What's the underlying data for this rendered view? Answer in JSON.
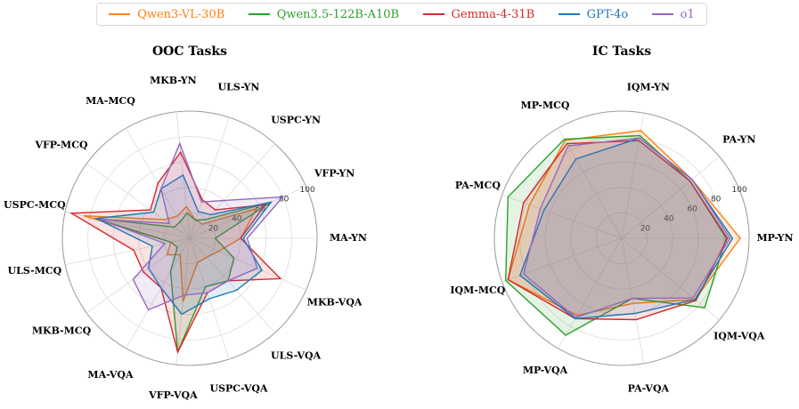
{
  "legend": [
    {
      "name": "Qwen3-VL-30B",
      "color": "#ff7f0e"
    },
    {
      "name": "Qwen3.5-122B-A10B",
      "color": "#2ca02c"
    },
    {
      "name": "Gemma-4-31B",
      "color": "#d62728"
    },
    {
      "name": "GPT-4o",
      "color": "#1f77b4"
    },
    {
      "name": "o1",
      "color": "#9467bd"
    }
  ],
  "chart_data": [
    {
      "type": "radar",
      "title": "OOC Tasks",
      "categories": [
        "MA-YN",
        "VFP-YN",
        "USPC-YN",
        "ULS-YN",
        "MKB-YN",
        "MA-MCQ",
        "VFP-MCQ",
        "USPC-MCQ",
        "ULS-MCQ",
        "MKB-MCQ",
        "MA-VQA",
        "VFP-VQA",
        "USPC-VQA",
        "ULS-VQA",
        "MKB-VQA"
      ],
      "rlim": [
        0,
        100
      ],
      "rticks": [
        "20",
        "40",
        "60",
        "80",
        "100"
      ],
      "grid": true,
      "series": [
        {
          "name": "Qwen3-VL-30B",
          "color": "#ff7f0e",
          "values": [
            40,
            57,
            15,
            15,
            25,
            20,
            25,
            85,
            15,
            22,
            15,
            50,
            20,
            20,
            25
          ]
        },
        {
          "name": "Qwen3.5-122B-A10B",
          "color": "#2ca02c",
          "values": [
            20,
            70,
            20,
            15,
            20,
            15,
            15,
            75,
            15,
            12,
            30,
            90,
            40,
            45,
            38
          ]
        },
        {
          "name": "Gemma-4-31B",
          "color": "#d62728",
          "values": [
            40,
            65,
            30,
            32,
            68,
            50,
            38,
            95,
            45,
            45,
            45,
            90,
            45,
            45,
            78
          ]
        },
        {
          "name": "GPT-4o",
          "color": "#1f77b4",
          "values": [
            42,
            70,
            25,
            22,
            50,
            45,
            35,
            75,
            30,
            40,
            45,
            60,
            50,
            55,
            62
          ]
        },
        {
          "name": "o1",
          "color": "#9467bd",
          "values": [
            45,
            80,
            40,
            30,
            75,
            45,
            20,
            72,
            20,
            55,
            65,
            45,
            45,
            45,
            58
          ]
        }
      ]
    },
    {
      "type": "radar",
      "title": "IC Tasks",
      "categories": [
        "MP-YN",
        "PA-YN",
        "IQM-YN",
        "MP-MCQ",
        "PA-MCQ",
        "IQM-MCQ",
        "MP-VQA",
        "PA-VQA",
        "IQM-VQA"
      ],
      "rlim": [
        0,
        100
      ],
      "rticks": [
        "20",
        "40",
        "60",
        "80",
        "100"
      ],
      "grid": true,
      "series": [
        {
          "name": "Qwen3-VL-30B",
          "color": "#ff7f0e",
          "values": [
            93,
            72,
            86,
            89,
            77,
            95,
            70,
            52,
            75
          ]
        },
        {
          "name": "Qwen3.5-122B-A10B",
          "color": "#2ca02c",
          "values": [
            82,
            70,
            82,
            90,
            95,
            97,
            88,
            48,
            85
          ]
        },
        {
          "name": "Gemma-4-31B",
          "color": "#d62728",
          "values": [
            83,
            70,
            78,
            86,
            82,
            95,
            73,
            65,
            76
          ]
        },
        {
          "name": "GPT-4o",
          "color": "#1f77b4",
          "values": [
            87,
            72,
            80,
            72,
            65,
            85,
            73,
            60,
            75
          ]
        },
        {
          "name": "o1",
          "color": "#9467bd",
          "values": [
            85,
            72,
            80,
            84,
            68,
            82,
            72,
            48,
            73
          ]
        }
      ]
    }
  ]
}
